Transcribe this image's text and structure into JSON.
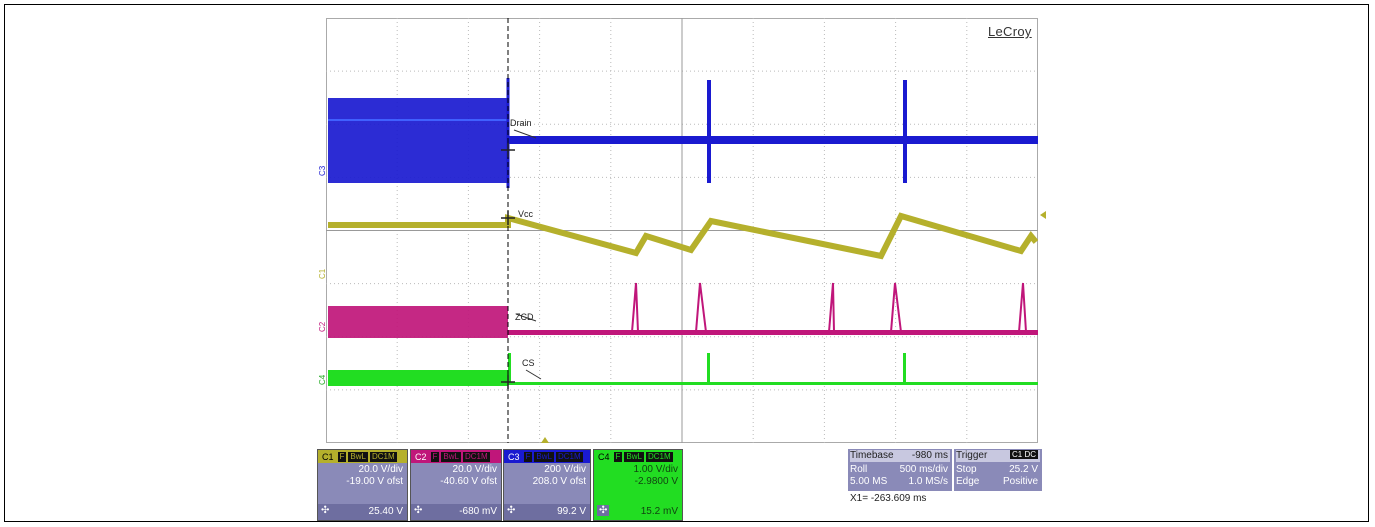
{
  "brand": "LeCroy",
  "trace_labels": {
    "drain": "Drain",
    "vcc": "Vcc",
    "zcd": "ZCD",
    "cs": "CS"
  },
  "channel_markers": {
    "c1": "C1",
    "c2": "C2",
    "c3": "C3",
    "c4": "C4"
  },
  "channels": [
    {
      "id": "C1",
      "tags": [
        "F",
        "BwL",
        "DC1M"
      ],
      "scale": "20.0 V/div",
      "offset": "-19.00 V ofst",
      "value": "25.40 V",
      "color": "#b5b02c"
    },
    {
      "id": "C2",
      "tags": [
        "F",
        "BwL",
        "DC1M"
      ],
      "scale": "20.0 V/div",
      "offset": "-40.60 V ofst",
      "value": "-680 mV",
      "color": "#c0167a"
    },
    {
      "id": "C3",
      "tags": [
        "F",
        "BwL",
        "DC1M"
      ],
      "scale": "200 V/div",
      "offset": "208.0 V ofst",
      "value": "99.2 V",
      "color": "#1a1ad0"
    },
    {
      "id": "C4",
      "tags": [
        "F",
        "BwL",
        "DC1M"
      ],
      "scale": "1.00 V/div",
      "offset": "-2.9800 V",
      "value": "15.2 mV",
      "color": "#22dd22"
    }
  ],
  "timebase": {
    "label": "Timebase",
    "value": "-980 ms",
    "mode": "Roll",
    "per_div": "500 ms/div",
    "samples": "5.00 MS",
    "rate": "1.0 MS/s"
  },
  "trigger": {
    "label": "Trigger",
    "source": "C1",
    "coupling": "DC",
    "mode": "Stop",
    "level": "25.2 V",
    "type": "Edge",
    "slope": "Positive"
  },
  "measurement": "X1=  -263.609 ms"
}
